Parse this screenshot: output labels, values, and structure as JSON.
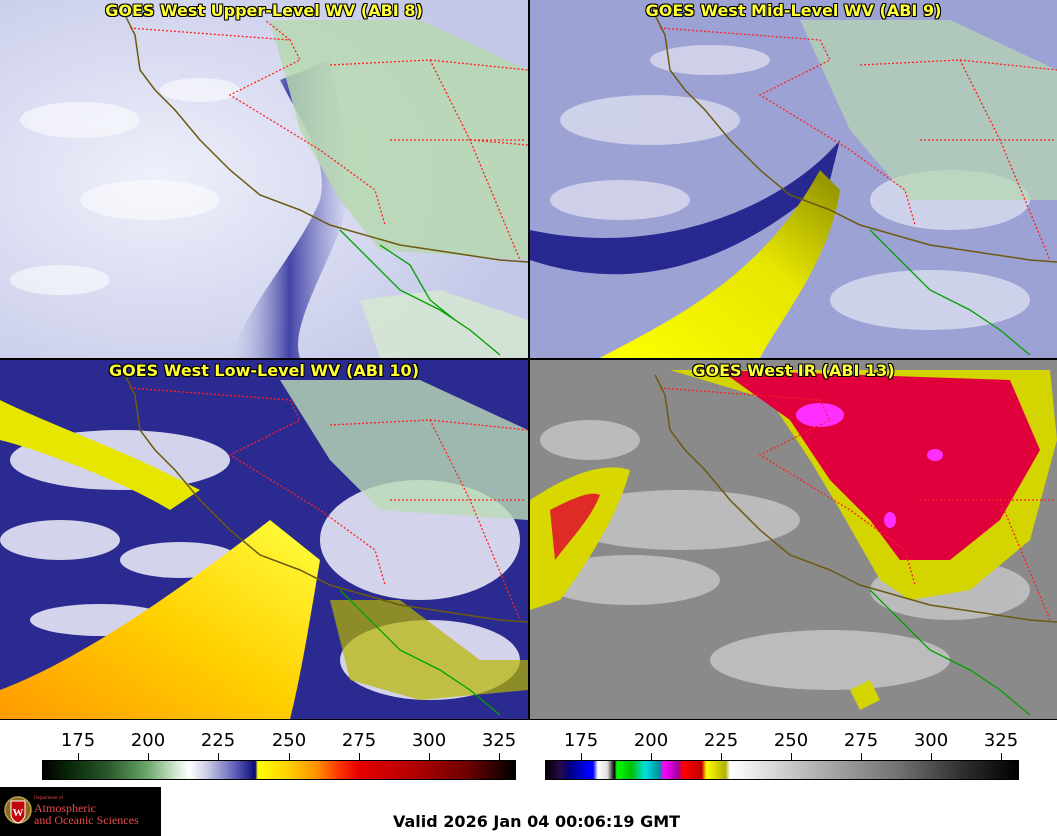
{
  "panels": [
    {
      "title": "GOES West Upper-Level WV (ABI 8)"
    },
    {
      "title": "GOES West Mid-Level WV (ABI 9)"
    },
    {
      "title": "GOES West Low-Level WV (ABI 10)"
    },
    {
      "title": "GOES West IR (ABI 13)"
    }
  ],
  "colorbars": {
    "wv_ticks": [
      "175",
      "200",
      "225",
      "250",
      "275",
      "300",
      "325"
    ],
    "ir_ticks": [
      "175",
      "200",
      "225",
      "250",
      "275",
      "300",
      "325"
    ]
  },
  "logo": {
    "line1": "Department of",
    "line2": "Atmospheric",
    "line3": "and Oceanic Sciences"
  },
  "valid_time": "Valid 2026 Jan 04 00:06:19 GMT",
  "colors": {
    "title_text": "#ffff33",
    "state_borders": "#ff2020",
    "coastline": "#6b5a10",
    "mexico_coast": "#00a000",
    "logo_red": "#e84a4a"
  }
}
